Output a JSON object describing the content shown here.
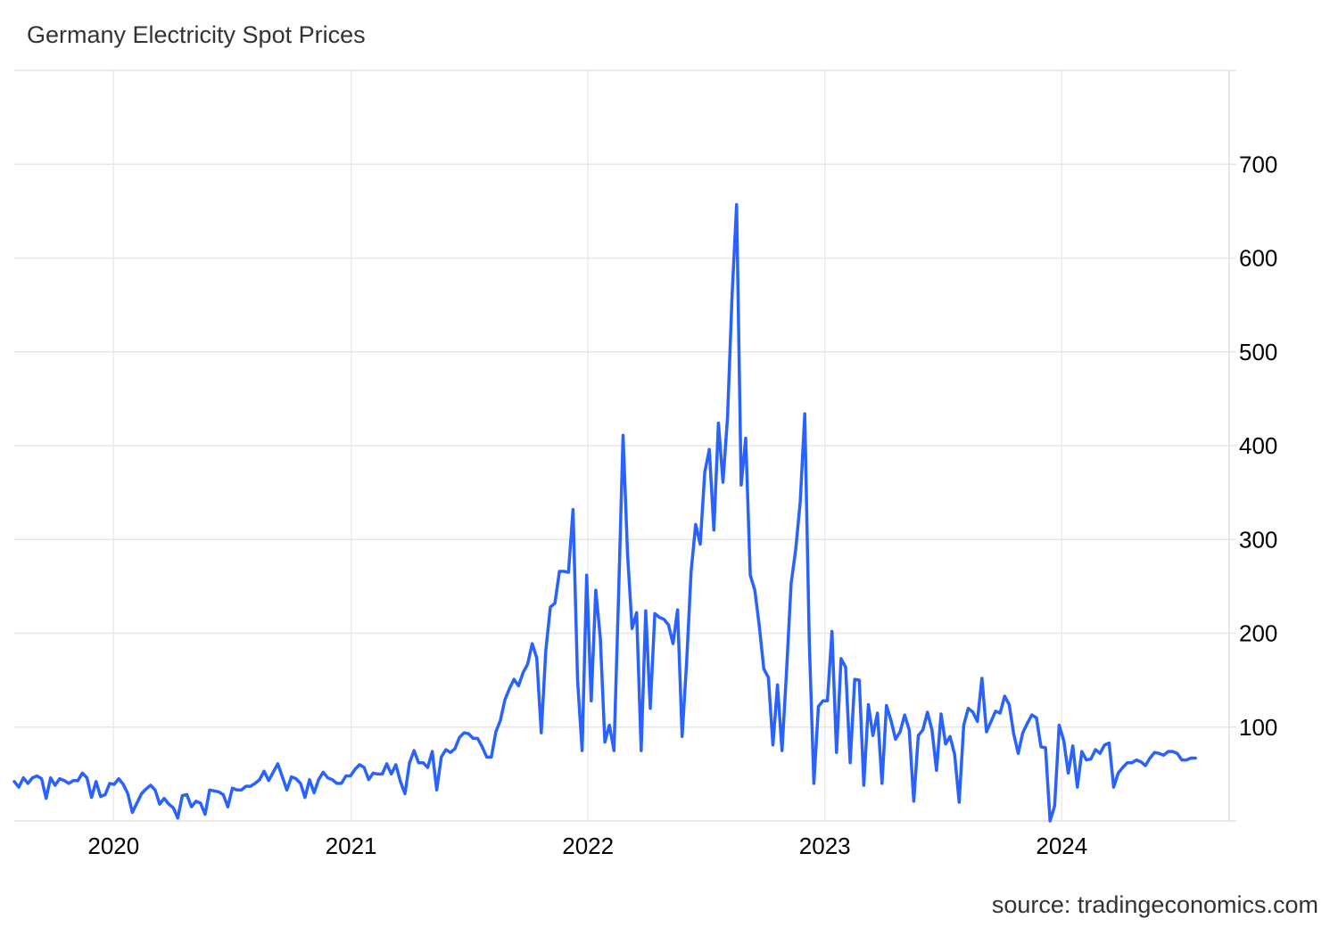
{
  "title": "Germany Electricity Spot Prices",
  "source": "source: tradingeconomics.com",
  "line_color": "#2962ff",
  "chart_data": {
    "type": "line",
    "title": "Germany Electricity Spot Prices",
    "xlabel": "",
    "ylabel": "",
    "grid": true,
    "y_axis_side": "right",
    "x_tick_labels": [
      "2020",
      "2021",
      "2022",
      "2023",
      "2024"
    ],
    "x_ticks": [
      "2020-01-01",
      "2021-01-01",
      "2022-01-01",
      "2023-01-01",
      "2024-01-01"
    ],
    "y_ticks": [
      100,
      200,
      300,
      400,
      500,
      600,
      700
    ],
    "xlim": [
      "2019-08-01",
      "2024-09-15"
    ],
    "ylim": [
      0,
      800
    ],
    "series": [
      {
        "values": [
          [
            "2019-08-01",
            42
          ],
          [
            "2019-08-08",
            36
          ],
          [
            "2019-08-15",
            46
          ],
          [
            "2019-08-22",
            40
          ],
          [
            "2019-08-29",
            46
          ],
          [
            "2019-09-05",
            48
          ],
          [
            "2019-09-12",
            45
          ],
          [
            "2019-09-19",
            24
          ],
          [
            "2019-09-26",
            46
          ],
          [
            "2019-10-03",
            38
          ],
          [
            "2019-10-10",
            45
          ],
          [
            "2019-10-17",
            43
          ],
          [
            "2019-10-24",
            40
          ],
          [
            "2019-10-31",
            43
          ],
          [
            "2019-11-07",
            43
          ],
          [
            "2019-11-14",
            51
          ],
          [
            "2019-11-21",
            46
          ],
          [
            "2019-11-28",
            25
          ],
          [
            "2019-12-05",
            42
          ],
          [
            "2019-12-12",
            26
          ],
          [
            "2019-12-19",
            28
          ],
          [
            "2019-12-26",
            40
          ],
          [
            "2020-01-02",
            39
          ],
          [
            "2020-01-09",
            45
          ],
          [
            "2020-01-16",
            39
          ],
          [
            "2020-01-23",
            29
          ],
          [
            "2020-01-30",
            9
          ],
          [
            "2020-02-06",
            19
          ],
          [
            "2020-02-13",
            29
          ],
          [
            "2020-02-20",
            34
          ],
          [
            "2020-02-27",
            38
          ],
          [
            "2020-03-05",
            33
          ],
          [
            "2020-03-12",
            18
          ],
          [
            "2020-03-19",
            24
          ],
          [
            "2020-03-26",
            18
          ],
          [
            "2020-04-02",
            14
          ],
          [
            "2020-04-09",
            3
          ],
          [
            "2020-04-16",
            27
          ],
          [
            "2020-04-23",
            28
          ],
          [
            "2020-04-30",
            15
          ],
          [
            "2020-05-07",
            21
          ],
          [
            "2020-05-14",
            19
          ],
          [
            "2020-05-21",
            7
          ],
          [
            "2020-05-28",
            33
          ],
          [
            "2020-06-04",
            32
          ],
          [
            "2020-06-11",
            31
          ],
          [
            "2020-06-18",
            28
          ],
          [
            "2020-06-25",
            15
          ],
          [
            "2020-07-02",
            35
          ],
          [
            "2020-07-09",
            33
          ],
          [
            "2020-07-16",
            33
          ],
          [
            "2020-07-23",
            37
          ],
          [
            "2020-07-30",
            37
          ],
          [
            "2020-08-06",
            40
          ],
          [
            "2020-08-13",
            44
          ],
          [
            "2020-08-20",
            53
          ],
          [
            "2020-08-27",
            43
          ],
          [
            "2020-09-03",
            52
          ],
          [
            "2020-09-10",
            61
          ],
          [
            "2020-09-17",
            47
          ],
          [
            "2020-09-24",
            33
          ],
          [
            "2020-10-01",
            47
          ],
          [
            "2020-10-08",
            45
          ],
          [
            "2020-10-15",
            40
          ],
          [
            "2020-10-22",
            25
          ],
          [
            "2020-10-29",
            44
          ],
          [
            "2020-11-05",
            30
          ],
          [
            "2020-11-12",
            44
          ],
          [
            "2020-11-19",
            52
          ],
          [
            "2020-11-26",
            46
          ],
          [
            "2020-12-03",
            44
          ],
          [
            "2020-12-10",
            40
          ],
          [
            "2020-12-17",
            40
          ],
          [
            "2020-12-24",
            48
          ],
          [
            "2020-12-31",
            48
          ],
          [
            "2021-01-07",
            55
          ],
          [
            "2021-01-14",
            60
          ],
          [
            "2021-01-21",
            57
          ],
          [
            "2021-01-28",
            44
          ],
          [
            "2021-02-04",
            51
          ],
          [
            "2021-02-11",
            50
          ],
          [
            "2021-02-18",
            50
          ],
          [
            "2021-02-25",
            61
          ],
          [
            "2021-03-04",
            50
          ],
          [
            "2021-03-11",
            60
          ],
          [
            "2021-03-18",
            42
          ],
          [
            "2021-03-25",
            29
          ],
          [
            "2021-04-01",
            62
          ],
          [
            "2021-04-08",
            75
          ],
          [
            "2021-04-15",
            62
          ],
          [
            "2021-04-22",
            62
          ],
          [
            "2021-04-29",
            57
          ],
          [
            "2021-05-06",
            74
          ],
          [
            "2021-05-13",
            33
          ],
          [
            "2021-05-20",
            68
          ],
          [
            "2021-05-27",
            76
          ],
          [
            "2021-06-03",
            73
          ],
          [
            "2021-06-10",
            77
          ],
          [
            "2021-06-17",
            89
          ],
          [
            "2021-06-24",
            94
          ],
          [
            "2021-07-01",
            93
          ],
          [
            "2021-07-08",
            88
          ],
          [
            "2021-07-15",
            88
          ],
          [
            "2021-07-22",
            79
          ],
          [
            "2021-07-29",
            68
          ],
          [
            "2021-08-05",
            68
          ],
          [
            "2021-08-12",
            95
          ],
          [
            "2021-08-19",
            107
          ],
          [
            "2021-08-26",
            129
          ],
          [
            "2021-09-02",
            141
          ],
          [
            "2021-09-09",
            151
          ],
          [
            "2021-09-16",
            144
          ],
          [
            "2021-09-23",
            158
          ],
          [
            "2021-09-30",
            167
          ],
          [
            "2021-10-07",
            189
          ],
          [
            "2021-10-14",
            174
          ],
          [
            "2021-10-21",
            94
          ],
          [
            "2021-10-28",
            182
          ],
          [
            "2021-11-04",
            228
          ],
          [
            "2021-11-11",
            232
          ],
          [
            "2021-11-18",
            266
          ],
          [
            "2021-11-25",
            266
          ],
          [
            "2021-12-02",
            265
          ],
          [
            "2021-12-09",
            332
          ],
          [
            "2021-12-16",
            150
          ],
          [
            "2021-12-23",
            75
          ],
          [
            "2021-12-30",
            262
          ],
          [
            "2022-01-06",
            128
          ],
          [
            "2022-01-13",
            246
          ],
          [
            "2022-01-20",
            195
          ],
          [
            "2022-01-27",
            84
          ],
          [
            "2022-02-03",
            102
          ],
          [
            "2022-02-10",
            75
          ],
          [
            "2022-02-17",
            238
          ],
          [
            "2022-02-24",
            411
          ],
          [
            "2022-03-03",
            285
          ],
          [
            "2022-03-10",
            205
          ],
          [
            "2022-03-17",
            222
          ],
          [
            "2022-03-24",
            75
          ],
          [
            "2022-03-31",
            224
          ],
          [
            "2022-04-07",
            120
          ],
          [
            "2022-04-14",
            221
          ],
          [
            "2022-04-21",
            217
          ],
          [
            "2022-04-28",
            215
          ],
          [
            "2022-05-05",
            209
          ],
          [
            "2022-05-12",
            189
          ],
          [
            "2022-05-19",
            225
          ],
          [
            "2022-05-26",
            90
          ],
          [
            "2022-06-02",
            170
          ],
          [
            "2022-06-09",
            266
          ],
          [
            "2022-06-16",
            316
          ],
          [
            "2022-06-23",
            295
          ],
          [
            "2022-06-30",
            372
          ],
          [
            "2022-07-07",
            396
          ],
          [
            "2022-07-14",
            310
          ],
          [
            "2022-07-21",
            424
          ],
          [
            "2022-07-28",
            361
          ],
          [
            "2022-08-04",
            430
          ],
          [
            "2022-08-11",
            560
          ],
          [
            "2022-08-18",
            657
          ],
          [
            "2022-08-25",
            358
          ],
          [
            "2022-09-01",
            408
          ],
          [
            "2022-09-08",
            262
          ],
          [
            "2022-09-15",
            246
          ],
          [
            "2022-09-22",
            208
          ],
          [
            "2022-09-29",
            162
          ],
          [
            "2022-10-06",
            153
          ],
          [
            "2022-10-13",
            81
          ],
          [
            "2022-10-20",
            145
          ],
          [
            "2022-10-27",
            75
          ],
          [
            "2022-11-03",
            160
          ],
          [
            "2022-11-10",
            253
          ],
          [
            "2022-11-17",
            289
          ],
          [
            "2022-11-24",
            340
          ],
          [
            "2022-12-01",
            434
          ],
          [
            "2022-12-08",
            190
          ],
          [
            "2022-12-15",
            40
          ],
          [
            "2022-12-22",
            122
          ],
          [
            "2022-12-29",
            128
          ],
          [
            "2023-01-05",
            128
          ],
          [
            "2023-01-12",
            202
          ],
          [
            "2023-01-19",
            73
          ],
          [
            "2023-01-26",
            173
          ],
          [
            "2023-02-02",
            164
          ],
          [
            "2023-02-09",
            62
          ],
          [
            "2023-02-16",
            151
          ],
          [
            "2023-02-23",
            150
          ],
          [
            "2023-03-02",
            38
          ],
          [
            "2023-03-09",
            124
          ],
          [
            "2023-03-16",
            91
          ],
          [
            "2023-03-23",
            115
          ],
          [
            "2023-03-30",
            40
          ],
          [
            "2023-04-06",
            123
          ],
          [
            "2023-04-13",
            107
          ],
          [
            "2023-04-20",
            87
          ],
          [
            "2023-04-27",
            95
          ],
          [
            "2023-05-04",
            113
          ],
          [
            "2023-05-11",
            97
          ],
          [
            "2023-05-18",
            21
          ],
          [
            "2023-05-25",
            91
          ],
          [
            "2023-06-01",
            97
          ],
          [
            "2023-06-08",
            116
          ],
          [
            "2023-06-15",
            97
          ],
          [
            "2023-06-22",
            54
          ],
          [
            "2023-06-29",
            114
          ],
          [
            "2023-07-06",
            82
          ],
          [
            "2023-07-13",
            90
          ],
          [
            "2023-07-20",
            71
          ],
          [
            "2023-07-27",
            20
          ],
          [
            "2023-08-03",
            102
          ],
          [
            "2023-08-10",
            120
          ],
          [
            "2023-08-17",
            116
          ],
          [
            "2023-08-24",
            106
          ],
          [
            "2023-08-31",
            152
          ],
          [
            "2023-09-07",
            95
          ],
          [
            "2023-09-14",
            106
          ],
          [
            "2023-09-21",
            117
          ],
          [
            "2023-09-28",
            115
          ],
          [
            "2023-10-05",
            133
          ],
          [
            "2023-10-12",
            124
          ],
          [
            "2023-10-19",
            93
          ],
          [
            "2023-10-26",
            72
          ],
          [
            "2023-11-02",
            94
          ],
          [
            "2023-11-09",
            104
          ],
          [
            "2023-11-16",
            113
          ],
          [
            "2023-11-23",
            110
          ],
          [
            "2023-11-30",
            79
          ],
          [
            "2023-12-07",
            78
          ],
          [
            "2023-12-14",
            0
          ],
          [
            "2023-12-21",
            16
          ],
          [
            "2023-12-28",
            102
          ],
          [
            "2024-01-04",
            86
          ],
          [
            "2024-01-11",
            51
          ],
          [
            "2024-01-18",
            80
          ],
          [
            "2024-01-25",
            36
          ],
          [
            "2024-02-01",
            74
          ],
          [
            "2024-02-08",
            65
          ],
          [
            "2024-02-15",
            66
          ],
          [
            "2024-02-22",
            76
          ],
          [
            "2024-02-29",
            72
          ],
          [
            "2024-03-07",
            81
          ],
          [
            "2024-03-14",
            83
          ],
          [
            "2024-03-21",
            36
          ],
          [
            "2024-03-28",
            51
          ],
          [
            "2024-04-04",
            57
          ],
          [
            "2024-04-11",
            62
          ],
          [
            "2024-04-18",
            62
          ],
          [
            "2024-04-25",
            65
          ],
          [
            "2024-05-02",
            63
          ],
          [
            "2024-05-09",
            59
          ],
          [
            "2024-05-16",
            67
          ],
          [
            "2024-05-23",
            73
          ],
          [
            "2024-05-30",
            72
          ],
          [
            "2024-06-06",
            70
          ],
          [
            "2024-06-13",
            74
          ],
          [
            "2024-06-20",
            74
          ],
          [
            "2024-06-27",
            72
          ],
          [
            "2024-07-04",
            65
          ],
          [
            "2024-07-11",
            65
          ],
          [
            "2024-07-18",
            67
          ],
          [
            "2024-07-25",
            67
          ]
        ]
      }
    ]
  }
}
